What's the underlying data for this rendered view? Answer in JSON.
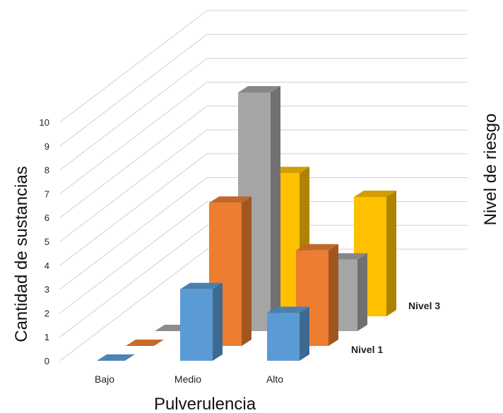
{
  "chart_data": {
    "type": "bar",
    "subtype": "3d-column",
    "title": "",
    "xlabel": "Pulverulencia",
    "ylabel": "Cantidad de sustancias",
    "zlabel": "Nivel de riesgo",
    "categories": [
      "Bajo",
      "Medio",
      "Alto"
    ],
    "series": [
      {
        "name": "Nivel 1",
        "values": [
          0,
          3,
          2
        ],
        "color": "#5B9BD5"
      },
      {
        "name": "",
        "values": [
          0,
          6,
          4
        ],
        "color": "#ED7D31"
      },
      {
        "name": "",
        "values": [
          0,
          10,
          3
        ],
        "color": "#A5A5A5"
      },
      {
        "name": "Nivel 3",
        "values": [
          null,
          6,
          5
        ],
        "color": "#FFC000"
      }
    ],
    "ylim": [
      0,
      10
    ],
    "yticks": [
      "0",
      "1",
      "2",
      "3",
      "4",
      "5",
      "6",
      "7",
      "8",
      "9",
      "10"
    ],
    "grid": true,
    "legend": "none"
  }
}
